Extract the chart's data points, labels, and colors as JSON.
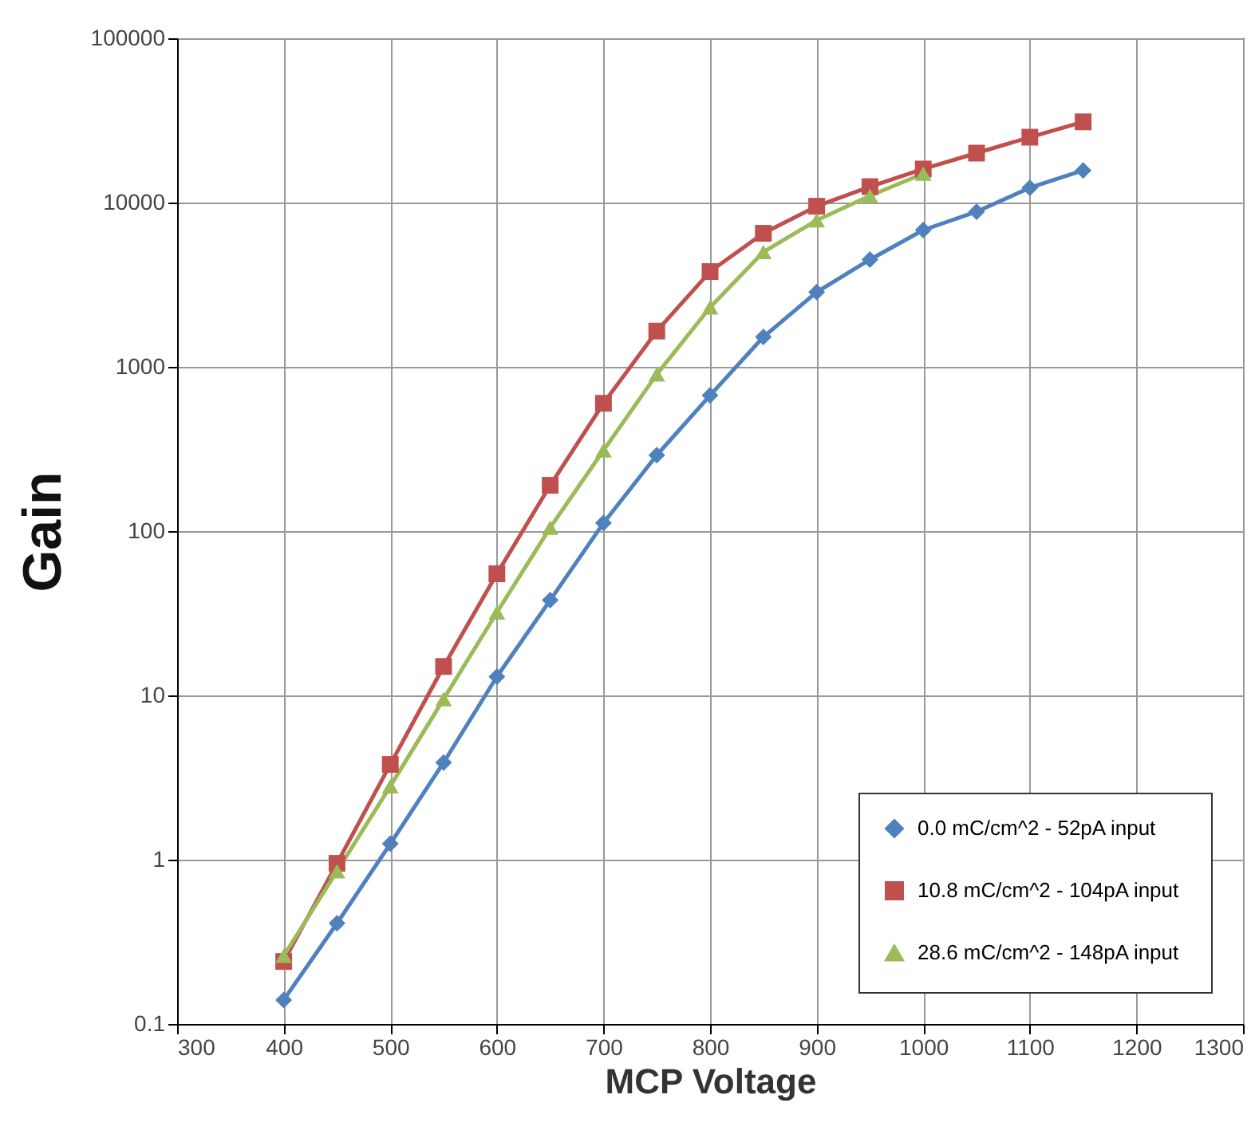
{
  "chart_data": {
    "type": "line",
    "xlabel": "MCP Voltage",
    "ylabel": "Gain",
    "log": "y",
    "grid": true,
    "legend": "bottom right",
    "line_style": "solid",
    "xlim": [
      300,
      1300
    ],
    "xticks": [
      300,
      400,
      500,
      600,
      700,
      800,
      900,
      1000,
      1100,
      1200,
      1300
    ],
    "ylim": [
      0.1,
      100000
    ],
    "yticks": [
      0.1,
      1,
      10,
      100,
      1000,
      10000,
      100000
    ],
    "x": [
      400,
      450,
      500,
      550,
      600,
      650,
      700,
      750,
      800,
      850,
      900,
      950,
      1000,
      1050,
      1100,
      1150
    ],
    "series": [
      {
        "name": "0.0 mC/cm^2  - 52pA input",
        "color": "#4f81bd",
        "marker": "diamond",
        "values": [
          0.14,
          0.41,
          1.25,
          3.9,
          13,
          38,
          112,
          290,
          670,
          1520,
          2850,
          4500,
          6800,
          8800,
          12300,
          15700
        ]
      },
      {
        "name": "10.8 mC/cm^2  - 104pA input",
        "color": "#c0504d",
        "marker": "square",
        "values": [
          0.24,
          0.95,
          3.8,
          15,
          55,
          190,
          600,
          1650,
          3800,
          6500,
          9500,
          12500,
          16000,
          20000,
          25000,
          31000
        ]
      },
      {
        "name": "28.6 mC/cm^2  - 148pA input",
        "color": "#9bbb59",
        "marker": "triangle",
        "x": [
          400,
          450,
          500,
          550,
          600,
          650,
          700,
          750,
          800,
          850,
          900,
          950,
          1000
        ],
        "values": [
          0.26,
          0.85,
          2.8,
          9.5,
          32,
          105,
          310,
          900,
          2300,
          5000,
          7800,
          11000,
          15000
        ]
      }
    ]
  }
}
